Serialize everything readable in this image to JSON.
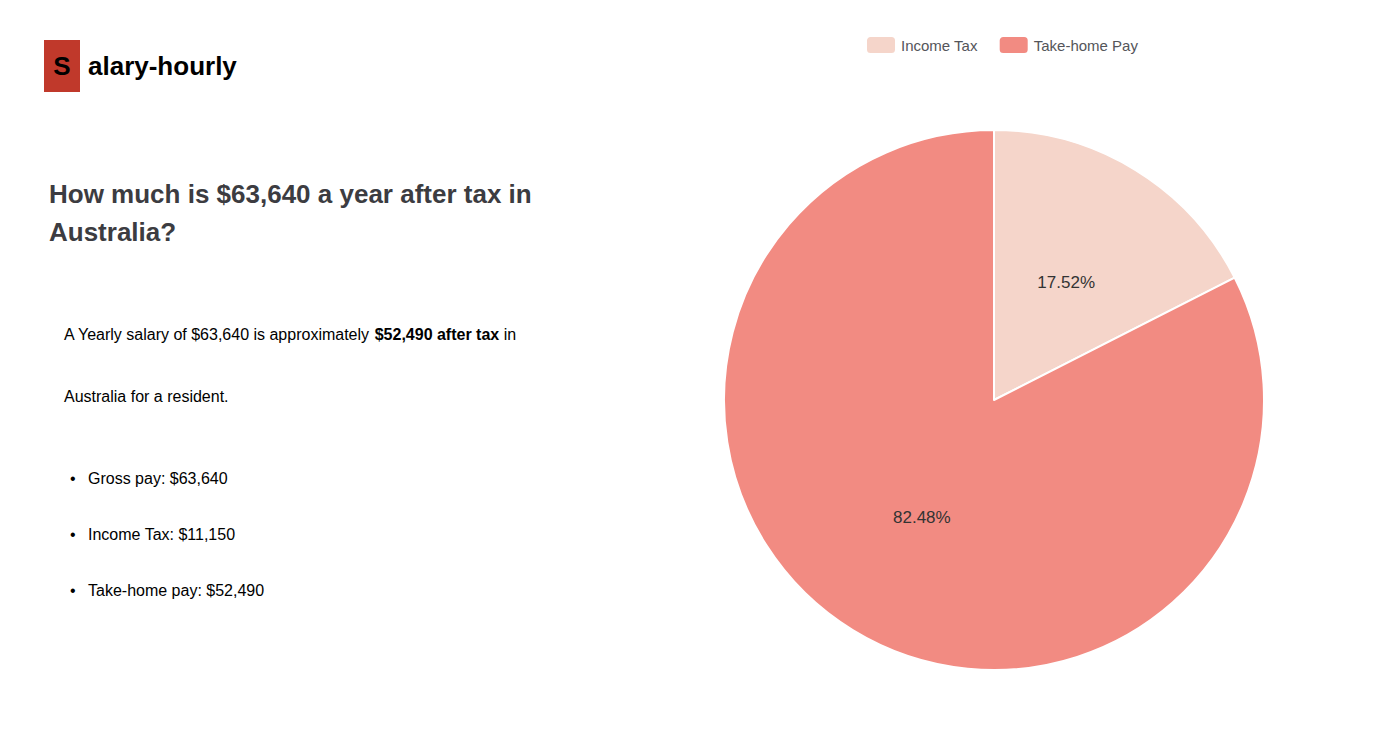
{
  "chart_data": {
    "type": "pie",
    "title": "How much is $63,640 a year after tax in\nAustralia?",
    "categories": [
      "Income Tax",
      "Take-home Pay"
    ],
    "values": [
      17.52,
      82.48
    ],
    "value_labels": [
      "17.52%",
      "82.48%"
    ],
    "colors": [
      "#f5d5ca",
      "#f28b82"
    ],
    "data_labels": true,
    "legend": "top",
    "annotations": [
      [
        {
          "text": "S",
          "color": "#c0392b"
        },
        {
          "text": "alary-hourly"
        }
      ],
      [
        {
          "text": "A Yearly salary of $63,640 is approximately "
        },
        {
          "text": "$52,490 after tax",
          "color": "#c0392b"
        },
        {
          "text": " in"
        }
      ],
      [
        {
          "text": "Australia for a resident."
        }
      ],
      [
        {
          "text": "•"
        },
        {
          "text": "Gross pay: $63,640"
        }
      ],
      [
        {
          "text": "•"
        },
        {
          "text": "Income Tax: $11,150"
        }
      ],
      [
        {
          "text": "•"
        },
        {
          "text": "Take-home pay: $52,490"
        }
      ]
    ]
  }
}
